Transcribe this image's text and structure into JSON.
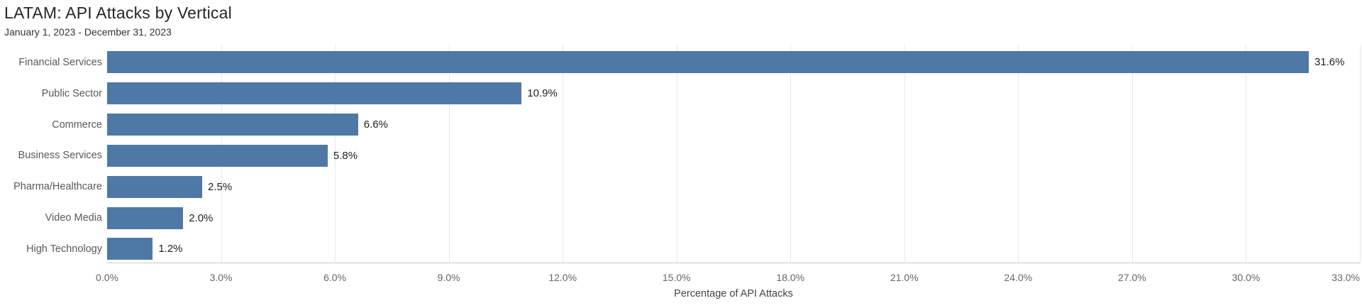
{
  "header": {
    "title": "LATAM: API Attacks by Vertical",
    "subtitle": "January 1, 2023 - December 31, 2023"
  },
  "chart_data": {
    "type": "bar",
    "orientation": "horizontal",
    "title": "LATAM: API Attacks by Vertical",
    "subtitle": "January 1, 2023 - December 31, 2023",
    "categories": [
      "Financial Services",
      "Public Sector",
      "Commerce",
      "Business Services",
      "Pharma/Healthcare",
      "Video Media",
      "High Technology"
    ],
    "values": [
      31.6,
      10.9,
      6.6,
      5.8,
      2.5,
      2.0,
      1.2
    ],
    "value_labels": [
      "31.6%",
      "10.9%",
      "6.6%",
      "5.8%",
      "2.5%",
      "2.0%",
      "1.2%"
    ],
    "xlabel": "Percentage of API Attacks",
    "ylabel": "",
    "xlim": [
      0,
      33
    ],
    "x_ticks": [
      0,
      3,
      6,
      9,
      12,
      15,
      18,
      21,
      24,
      27,
      30,
      33
    ],
    "x_tick_labels": [
      "0.0%",
      "3.0%",
      "6.0%",
      "9.0%",
      "12.0%",
      "15.0%",
      "18.0%",
      "21.0%",
      "24.0%",
      "27.0%",
      "30.0%",
      "33.0%"
    ],
    "grid": true,
    "legend": false,
    "colors": {
      "bar": "#4e79a7",
      "category_label": "#595959",
      "value_label": "#1f1f1f",
      "tick_label": "#666666",
      "gridline": "#e8e8e8",
      "axis_line": "#c9c9c9",
      "title": "#262626"
    }
  }
}
